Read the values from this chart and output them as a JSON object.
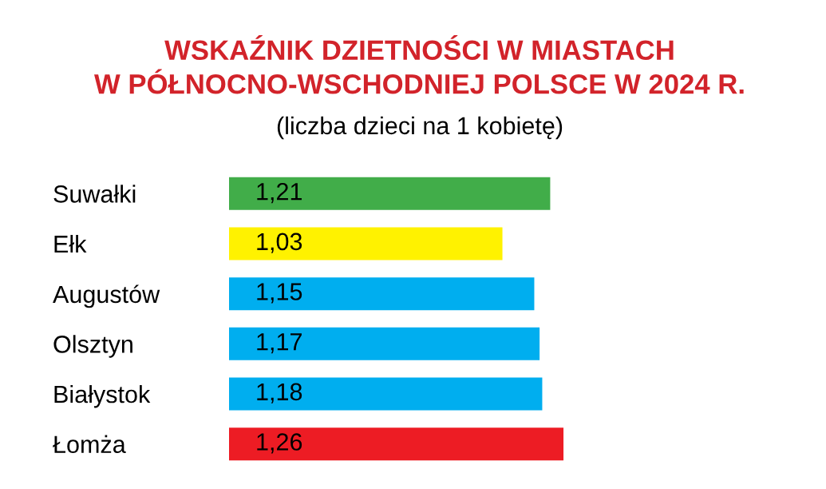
{
  "chart_data": {
    "type": "bar",
    "orientation": "horizontal",
    "title": "WSKAŹNIK DZIETNOŚCI W MIASTACH\nW PÓŁNOCNO-WSCHODNIEJ POLSCE W 2024 R.",
    "subtitle": "(liczba dzieci na 1 kobietę)",
    "categories": [
      "Suwałki",
      "Ełk",
      "Augustów",
      "Olsztyn",
      "Białystok",
      "Łomża"
    ],
    "values": [
      1.21,
      1.03,
      1.15,
      1.17,
      1.18,
      1.26
    ],
    "colors": [
      "#41ad49",
      "#fff200",
      "#00aeef",
      "#00aeef",
      "#00aeef",
      "#ed1c24"
    ],
    "value_labels": [
      "1,21",
      "1,03",
      "1,15",
      "1,17",
      "1,18",
      "1,26"
    ],
    "tick_labels": "y"
  }
}
